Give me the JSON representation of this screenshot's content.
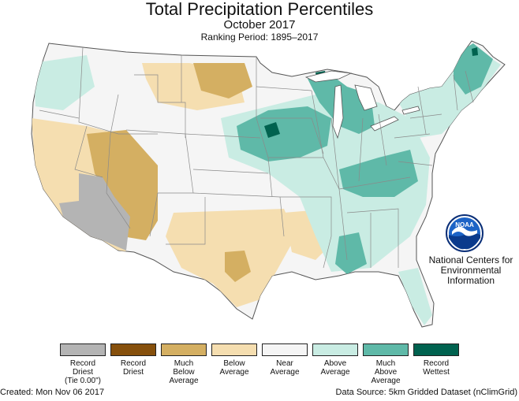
{
  "title": "Total Precipitation Percentiles",
  "subtitle": "October 2017",
  "ranking_period": "Ranking Period: 1895–2017",
  "agency": {
    "logo_text": "NOAA",
    "name_lines": [
      "National Centers for",
      "Environmental",
      "Information"
    ]
  },
  "colors": {
    "record_driest": "#b4b4b4",
    "record_dry": "#86500c",
    "much_below": "#d4af62",
    "below": "#f5deb0",
    "near": "#f5f5f5",
    "above": "#c9ece3",
    "much_above": "#5fb9a8",
    "record_wettest": "#00624f",
    "state_line": "#8a8a8a"
  },
  "legend": [
    {
      "lines": [
        "Record",
        "Driest",
        "(Tie 0.00\")"
      ],
      "color": "#b4b4b4"
    },
    {
      "lines": [
        "Record",
        "Driest"
      ],
      "color": "#86500c"
    },
    {
      "lines": [
        "Much",
        "Below",
        "Average"
      ],
      "color": "#d4af62"
    },
    {
      "lines": [
        "Below",
        "Average"
      ],
      "color": "#f5deb0"
    },
    {
      "lines": [
        "Near",
        "Average"
      ],
      "color": "#f5f5f5"
    },
    {
      "lines": [
        "Above",
        "Average"
      ],
      "color": "#c9ece3"
    },
    {
      "lines": [
        "Much",
        "Above",
        "Average"
      ],
      "color": "#5fb9a8"
    },
    {
      "lines": [
        "Record",
        "Wettest"
      ],
      "color": "#00624f"
    }
  ],
  "footer": {
    "created": "Created: Mon Nov 06 2017",
    "source": "Data Source: 5km Gridded Dataset (nClimGrid)"
  }
}
